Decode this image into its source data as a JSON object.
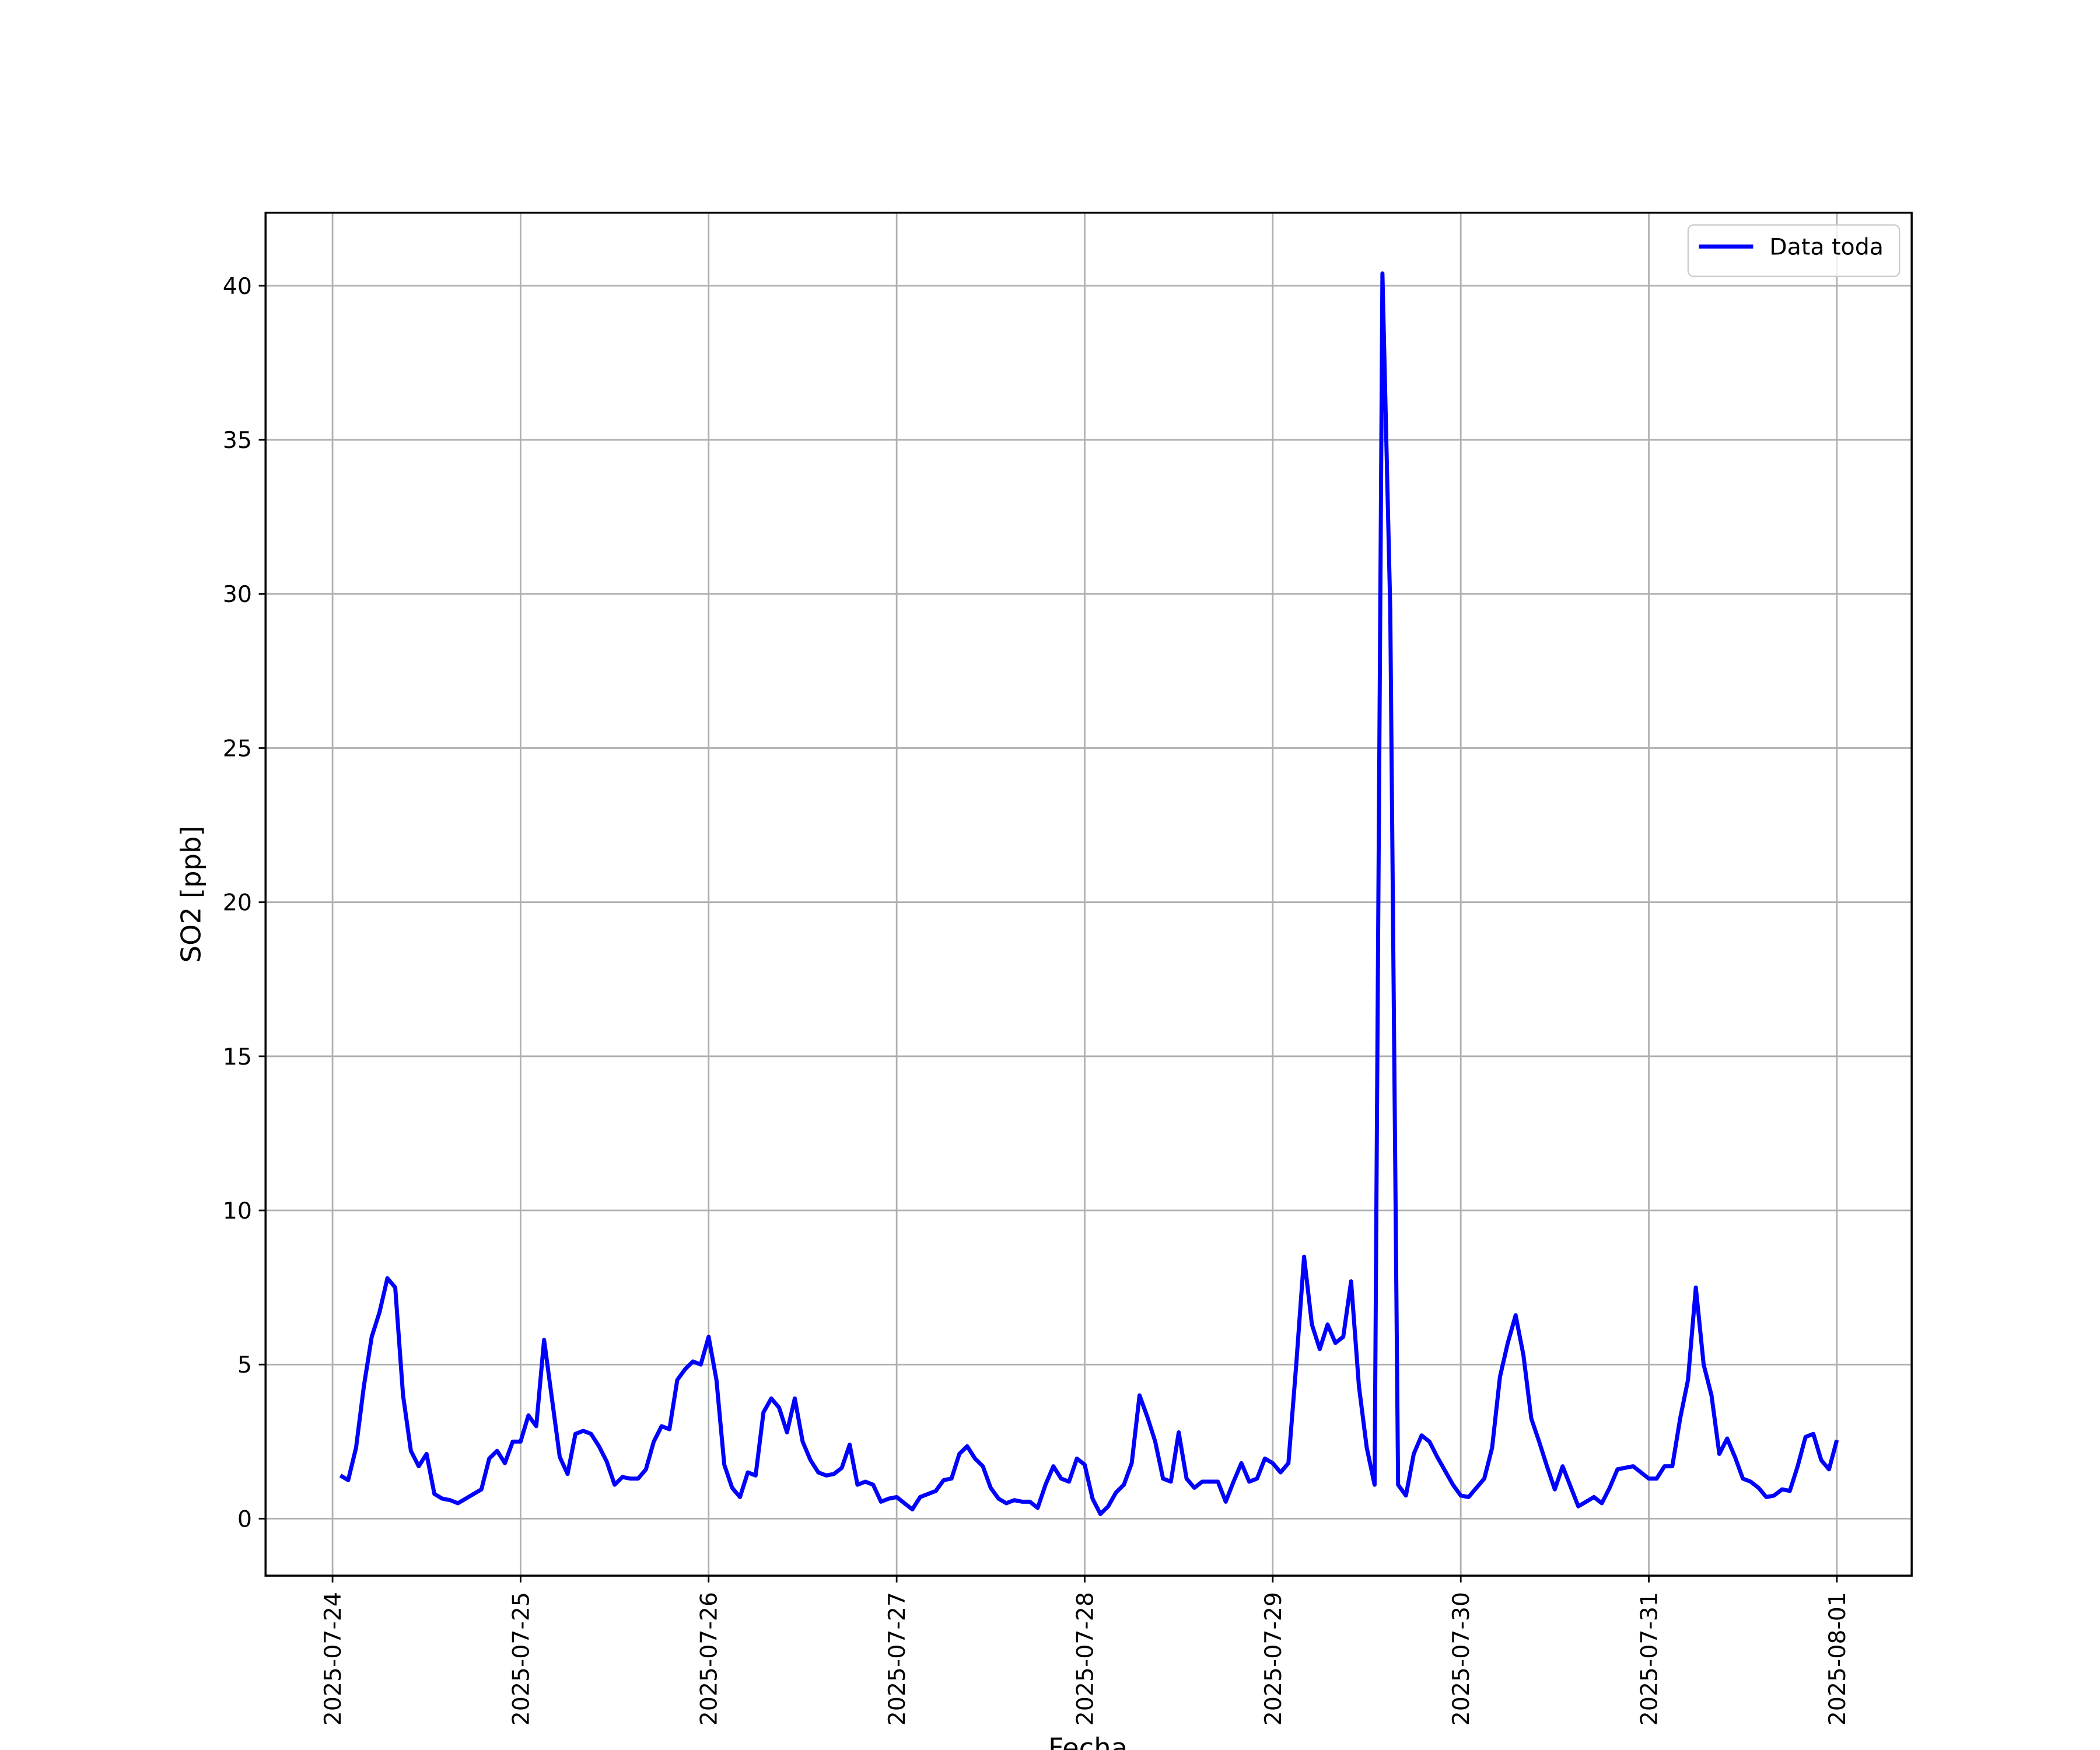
{
  "chart_data": {
    "type": "line",
    "xlabel": "Fecha",
    "ylabel": "SO2 [ppb]",
    "x": [
      "2025-07-24 01:00",
      "2025-07-24 02:00",
      "2025-07-24 03:00",
      "2025-07-24 04:00",
      "2025-07-24 05:00",
      "2025-07-24 06:00",
      "2025-07-24 07:00",
      "2025-07-24 08:00",
      "2025-07-24 09:00",
      "2025-07-24 10:00",
      "2025-07-24 11:00",
      "2025-07-24 12:00",
      "2025-07-24 13:00",
      "2025-07-24 14:00",
      "2025-07-24 15:00",
      "2025-07-24 16:00",
      "2025-07-24 17:00",
      "2025-07-24 18:00",
      "2025-07-24 19:00",
      "2025-07-24 20:00",
      "2025-07-24 21:00",
      "2025-07-24 22:00",
      "2025-07-24 23:00",
      "2025-07-25 00:00",
      "2025-07-25 01:00",
      "2025-07-25 02:00",
      "2025-07-25 03:00",
      "2025-07-25 04:00",
      "2025-07-25 05:00",
      "2025-07-25 06:00",
      "2025-07-25 07:00",
      "2025-07-25 08:00",
      "2025-07-25 09:00",
      "2025-07-25 10:00",
      "2025-07-25 11:00",
      "2025-07-25 12:00",
      "2025-07-25 13:00",
      "2025-07-25 14:00",
      "2025-07-25 15:00",
      "2025-07-25 16:00",
      "2025-07-25 17:00",
      "2025-07-25 18:00",
      "2025-07-25 19:00",
      "2025-07-25 20:00",
      "2025-07-25 21:00",
      "2025-07-25 22:00",
      "2025-07-25 23:00",
      "2025-07-26 00:00",
      "2025-07-26 01:00",
      "2025-07-26 02:00",
      "2025-07-26 03:00",
      "2025-07-26 04:00",
      "2025-07-26 05:00",
      "2025-07-26 06:00",
      "2025-07-26 07:00",
      "2025-07-26 08:00",
      "2025-07-26 09:00",
      "2025-07-26 10:00",
      "2025-07-26 11:00",
      "2025-07-26 12:00",
      "2025-07-26 13:00",
      "2025-07-26 14:00",
      "2025-07-26 15:00",
      "2025-07-26 16:00",
      "2025-07-26 17:00",
      "2025-07-26 18:00",
      "2025-07-26 19:00",
      "2025-07-26 20:00",
      "2025-07-26 21:00",
      "2025-07-26 22:00",
      "2025-07-26 23:00",
      "2025-07-27 00:00",
      "2025-07-27 01:00",
      "2025-07-27 02:00",
      "2025-07-27 03:00",
      "2025-07-27 04:00",
      "2025-07-27 05:00",
      "2025-07-27 06:00",
      "2025-07-27 07:00",
      "2025-07-27 08:00",
      "2025-07-27 09:00",
      "2025-07-27 10:00",
      "2025-07-27 11:00",
      "2025-07-27 12:00",
      "2025-07-27 13:00",
      "2025-07-27 14:00",
      "2025-07-27 15:00",
      "2025-07-27 16:00",
      "2025-07-27 17:00",
      "2025-07-27 18:00",
      "2025-07-27 19:00",
      "2025-07-27 20:00",
      "2025-07-27 21:00",
      "2025-07-27 22:00",
      "2025-07-27 23:00",
      "2025-07-28 00:00",
      "2025-07-28 01:00",
      "2025-07-28 02:00",
      "2025-07-28 03:00",
      "2025-07-28 04:00",
      "2025-07-28 05:00",
      "2025-07-28 06:00",
      "2025-07-28 07:00",
      "2025-07-28 08:00",
      "2025-07-28 09:00",
      "2025-07-28 10:00",
      "2025-07-28 11:00",
      "2025-07-28 12:00",
      "2025-07-28 13:00",
      "2025-07-28 14:00",
      "2025-07-28 15:00",
      "2025-07-28 16:00",
      "2025-07-28 17:00",
      "2025-07-28 18:00",
      "2025-07-28 19:00",
      "2025-07-28 20:00",
      "2025-07-28 21:00",
      "2025-07-28 22:00",
      "2025-07-28 23:00",
      "2025-07-29 00:00",
      "2025-07-29 01:00",
      "2025-07-29 02:00",
      "2025-07-29 03:00",
      "2025-07-29 04:00",
      "2025-07-29 05:00",
      "2025-07-29 06:00",
      "2025-07-29 07:00",
      "2025-07-29 08:00",
      "2025-07-29 09:00",
      "2025-07-29 10:00",
      "2025-07-29 11:00",
      "2025-07-29 12:00",
      "2025-07-29 13:00",
      "2025-07-29 14:00",
      "2025-07-29 15:00",
      "2025-07-29 16:00",
      "2025-07-29 17:00",
      "2025-07-29 18:00",
      "2025-07-29 19:00",
      "2025-07-29 20:00",
      "2025-07-29 21:00",
      "2025-07-29 22:00",
      "2025-07-29 23:00",
      "2025-07-30 00:00",
      "2025-07-30 01:00",
      "2025-07-30 02:00",
      "2025-07-30 03:00",
      "2025-07-30 04:00",
      "2025-07-30 05:00",
      "2025-07-30 06:00",
      "2025-07-30 07:00",
      "2025-07-30 08:00",
      "2025-07-30 09:00",
      "2025-07-30 10:00",
      "2025-07-30 11:00",
      "2025-07-30 12:00",
      "2025-07-30 13:00",
      "2025-07-30 14:00",
      "2025-07-30 15:00",
      "2025-07-30 16:00",
      "2025-07-30 17:00",
      "2025-07-30 18:00",
      "2025-07-30 19:00",
      "2025-07-30 20:00",
      "2025-07-30 21:00",
      "2025-07-30 22:00",
      "2025-07-30 23:00",
      "2025-07-31 00:00",
      "2025-07-31 01:00",
      "2025-07-31 02:00",
      "2025-07-31 03:00",
      "2025-07-31 04:00",
      "2025-07-31 05:00",
      "2025-07-31 06:00",
      "2025-07-31 07:00",
      "2025-07-31 08:00",
      "2025-07-31 09:00",
      "2025-07-31 10:00",
      "2025-07-31 11:00",
      "2025-07-31 12:00",
      "2025-07-31 13:00",
      "2025-07-31 14:00",
      "2025-07-31 15:00",
      "2025-07-31 16:00",
      "2025-07-31 17:00",
      "2025-07-31 18:00",
      "2025-07-31 19:00",
      "2025-07-31 20:00",
      "2025-07-31 21:00",
      "2025-07-31 22:00",
      "2025-07-31 23:00",
      "2025-08-01 00:00"
    ],
    "series": [
      {
        "name": "Data toda",
        "color": "#0000ff",
        "values": [
          1.4,
          1.25,
          2.3,
          4.3,
          5.9,
          6.7,
          7.8,
          7.5,
          4.0,
          2.2,
          1.7,
          2.1,
          0.8,
          0.65,
          0.6,
          0.5,
          0.65,
          0.8,
          0.95,
          1.95,
          2.2,
          1.8,
          2.5,
          2.5,
          3.35,
          3.0,
          5.8,
          3.9,
          2.0,
          1.45,
          2.75,
          2.85,
          2.75,
          2.35,
          1.85,
          1.1,
          1.35,
          1.3,
          1.3,
          1.6,
          2.5,
          3.0,
          2.9,
          4.5,
          4.85,
          5.1,
          5.0,
          5.9,
          4.5,
          1.75,
          1.0,
          0.7,
          1.5,
          1.4,
          3.45,
          3.9,
          3.6,
          2.8,
          3.9,
          2.5,
          1.9,
          1.5,
          1.4,
          1.45,
          1.65,
          2.4,
          1.1,
          1.2,
          1.1,
          0.55,
          0.65,
          0.7,
          0.5,
          0.3,
          0.7,
          0.8,
          0.9,
          1.25,
          1.3,
          2.1,
          2.35,
          1.95,
          1.7,
          1.0,
          0.65,
          0.5,
          0.6,
          0.55,
          0.55,
          0.35,
          1.1,
          1.7,
          1.3,
          1.2,
          1.95,
          1.75,
          0.65,
          0.15,
          0.4,
          0.85,
          1.1,
          1.8,
          4.0,
          3.3,
          2.5,
          1.3,
          1.2,
          2.8,
          1.3,
          1.0,
          1.2,
          1.2,
          1.2,
          0.55,
          1.2,
          1.8,
          1.2,
          1.3,
          1.95,
          1.8,
          1.5,
          1.8,
          5.0,
          8.5,
          6.3,
          5.5,
          6.3,
          5.7,
          5.9,
          7.7,
          4.3,
          2.3,
          1.1,
          40.4,
          29.5,
          1.1,
          0.75,
          2.1,
          2.7,
          2.5,
          2.0,
          1.55,
          1.1,
          0.75,
          0.7,
          1.0,
          1.3,
          2.3,
          4.6,
          5.7,
          6.6,
          5.3,
          3.25,
          2.5,
          1.7,
          0.95,
          1.7,
          1.05,
          0.4,
          0.55,
          0.7,
          0.5,
          1.0,
          1.6,
          1.65,
          1.7,
          1.5,
          1.3,
          1.3,
          1.7,
          1.7,
          3.25,
          4.5,
          7.5,
          5.0,
          4.0,
          2.1,
          2.6,
          2.0,
          1.3,
          1.2,
          1.0,
          0.7,
          0.75,
          0.95,
          0.9,
          1.7,
          2.65,
          2.75,
          1.9,
          1.6,
          2.55
        ]
      }
    ],
    "xlim": [
      "2025-07-23 15:27",
      "2025-08-01 09:33"
    ],
    "xticks": [
      "2025-07-24",
      "2025-07-25",
      "2025-07-26",
      "2025-07-27",
      "2025-07-28",
      "2025-07-29",
      "2025-07-30",
      "2025-07-31",
      "2025-08-01"
    ],
    "ylim": [
      -1.85,
      42.37
    ],
    "yticks": [
      0,
      5,
      10,
      15,
      20,
      25,
      30,
      35,
      40
    ],
    "grid": true,
    "legend": "upper right"
  }
}
